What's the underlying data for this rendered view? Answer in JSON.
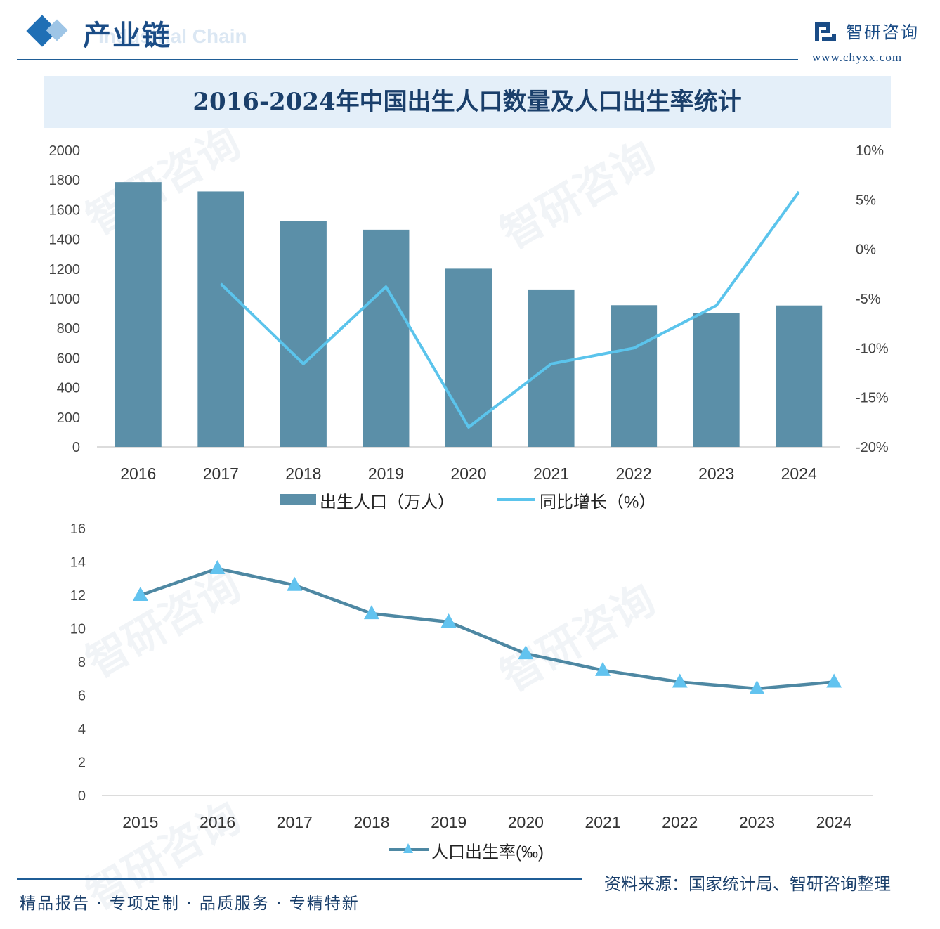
{
  "header": {
    "title": "产业链",
    "subtitle_en": "Industrial Chain",
    "brand_name": "智研咨询",
    "brand_url": "www.chyxx.com"
  },
  "chart_title": "2016-2024年中国出生人口数量及人口出生率统计",
  "chart_data": [
    {
      "type": "bar",
      "categories": [
        "2016",
        "2017",
        "2018",
        "2019",
        "2020",
        "2021",
        "2022",
        "2023",
        "2024"
      ],
      "series": [
        {
          "name": "出生人口（万人）",
          "type": "bar",
          "axis": "left",
          "values": [
            1786,
            1723,
            1523,
            1465,
            1202,
            1062,
            956,
            902,
            954
          ]
        },
        {
          "name": "同比增长（%）",
          "type": "line",
          "axis": "right",
          "values": [
            null,
            -3.5,
            -11.6,
            -3.8,
            -18.0,
            -11.6,
            -10.0,
            -5.7,
            5.8
          ]
        }
      ],
      "y_left": {
        "min": 0,
        "max": 2000,
        "ticks": [
          0,
          200,
          400,
          600,
          800,
          1000,
          1200,
          1400,
          1600,
          1800,
          2000
        ]
      },
      "y_right": {
        "min": -20,
        "max": 10,
        "ticks": [
          "-20%",
          "-15%",
          "-10%",
          "-5%",
          "0%",
          "5%",
          "10%"
        ]
      },
      "bar_color": "#5b8fa8",
      "line_color": "#5bc4ec",
      "legend_position": "bottom"
    },
    {
      "type": "line",
      "categories": [
        "2015",
        "2016",
        "2017",
        "2018",
        "2019",
        "2020",
        "2021",
        "2022",
        "2023",
        "2024"
      ],
      "series": [
        {
          "name": "人口出生率(‰)",
          "values": [
            12.0,
            13.6,
            12.6,
            10.9,
            10.4,
            8.5,
            7.5,
            6.8,
            6.4,
            6.8
          ]
        }
      ],
      "y": {
        "min": 0,
        "max": 16,
        "ticks": [
          0,
          2,
          4,
          6,
          8,
          10,
          12,
          14,
          16
        ]
      },
      "line_color": "#4e88a3",
      "marker_color": "#62c3ef",
      "legend_position": "bottom"
    }
  ],
  "footer": {
    "slogan": "精品报告 · 专项定制 · 品质服务 · 专精特新",
    "source": "资料来源：国家统计局、智研咨询整理"
  },
  "watermark": "智研咨询"
}
